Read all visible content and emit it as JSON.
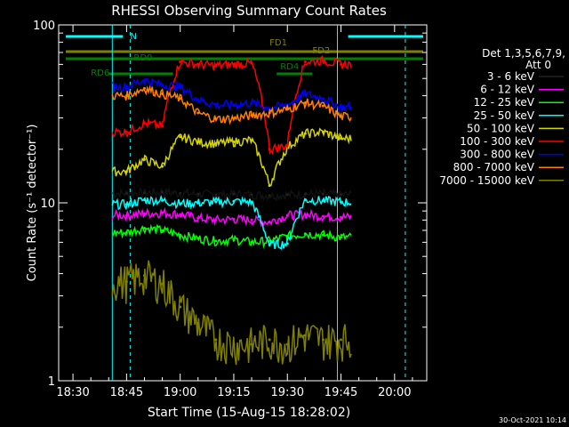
{
  "chart_data": {
    "type": "line",
    "title": "RHESSI Observing Summary Count Rates",
    "xlabel": "Start Time (15-Aug-15 18:28:02)",
    "ylabel": "Count Rate (s⁻¹ detector⁻¹)",
    "yscale": "log",
    "xlim": [
      "18:26",
      "20:09"
    ],
    "ylim": [
      1,
      100
    ],
    "x_ticks": [
      "18:30",
      "18:45",
      "19:00",
      "19:15",
      "19:30",
      "19:45",
      "20:00"
    ],
    "y_ticks": [
      "1",
      "10",
      "100"
    ],
    "grid": false,
    "legend_position": "right",
    "legend_header": [
      "Det 1,3,5,6,7,9,",
      "Att 0"
    ],
    "timestamp": "30-Oct-2021 10:14",
    "series": [
      {
        "name": "3 - 6 keV",
        "color": "#000000",
        "x": [
          "18:45",
          "18:50",
          "18:55",
          "19:00",
          "19:05",
          "19:10",
          "19:15",
          "19:20",
          "19:25",
          "19:30",
          "19:35",
          "19:40",
          "19:45"
        ],
        "y": [
          11.3,
          11.4,
          11.5,
          11.3,
          11.2,
          11.1,
          11.2,
          11.1,
          11.0,
          11.1,
          11.2,
          11.2,
          11.1
        ]
      },
      {
        "name": "6 - 12 keV",
        "color": "#ff00ff",
        "x": [
          "18:45",
          "18:50",
          "18:55",
          "19:00",
          "19:05",
          "19:10",
          "19:15",
          "19:20",
          "19:25",
          "19:30",
          "19:35",
          "19:40",
          "19:45"
        ],
        "y": [
          8.5,
          8.7,
          8.8,
          8.6,
          8.2,
          8.0,
          8.1,
          8.0,
          7.8,
          8.5,
          8.6,
          8.4,
          8.3
        ]
      },
      {
        "name": "12 - 25 keV",
        "color": "#00ff00",
        "x": [
          "18:45",
          "18:50",
          "18:55",
          "19:00",
          "19:05",
          "19:10",
          "19:15",
          "19:20",
          "19:25",
          "19:30",
          "19:35",
          "19:40",
          "19:45"
        ],
        "y": [
          6.8,
          7.2,
          7.0,
          6.6,
          6.3,
          6.1,
          6.2,
          6.0,
          6.1,
          6.5,
          6.7,
          6.6,
          6.4
        ]
      },
      {
        "name": "25 - 50 keV",
        "color": "#00ffff",
        "x": [
          "18:45",
          "18:50",
          "18:55",
          "19:00",
          "19:05",
          "19:10",
          "19:15",
          "19:20",
          "19:25",
          "19:30",
          "19:35",
          "19:40",
          "19:45"
        ],
        "y": [
          9.8,
          10.4,
          10.3,
          9.9,
          10.0,
          10.1,
          10.2,
          10.1,
          5.8,
          5.9,
          10.4,
          10.3,
          10.1
        ]
      },
      {
        "name": "50 - 100 keV",
        "color": "#d4d400",
        "x": [
          "18:45",
          "18:50",
          "18:55",
          "19:00",
          "19:05",
          "19:10",
          "19:15",
          "19:20",
          "19:25",
          "19:30",
          "19:35",
          "19:40",
          "19:45"
        ],
        "y": [
          15.0,
          17.5,
          16.0,
          23.5,
          22.0,
          21.5,
          22.0,
          22.5,
          12.5,
          20.5,
          24.5,
          25.0,
          23.0
        ]
      },
      {
        "name": "100 - 300 keV",
        "color": "#ff0000",
        "x": [
          "18:45",
          "18:50",
          "18:55",
          "19:00",
          "19:05",
          "19:10",
          "19:15",
          "19:20",
          "19:25",
          "19:30",
          "19:35",
          "19:40",
          "19:45"
        ],
        "y": [
          25.0,
          28.0,
          27.0,
          62.0,
          60.0,
          59.0,
          60.0,
          61.0,
          20.0,
          21.0,
          62.0,
          63.0,
          60.0
        ]
      },
      {
        "name": "300 - 800 keV",
        "color": "#0000ff",
        "x": [
          "18:45",
          "18:50",
          "18:55",
          "19:00",
          "19:05",
          "19:10",
          "19:15",
          "19:20",
          "19:25",
          "19:30",
          "19:35",
          "19:40",
          "19:45"
        ],
        "y": [
          45.0,
          49.0,
          46.0,
          45.0,
          38.0,
          35.5,
          35.5,
          36.5,
          34.0,
          35.5,
          41.0,
          38.5,
          34.5
        ]
      },
      {
        "name": "800 - 7000 keV",
        "color": "#ff8000",
        "x": [
          "18:45",
          "18:50",
          "18:55",
          "19:00",
          "19:05",
          "19:10",
          "19:15",
          "19:20",
          "19:25",
          "19:30",
          "19:35",
          "19:40",
          "19:45"
        ],
        "y": [
          40.0,
          44.0,
          41.0,
          38.5,
          32.0,
          29.5,
          29.8,
          31.0,
          32.0,
          33.5,
          36.5,
          35.0,
          30.5
        ]
      },
      {
        "name": "7000 - 15000 keV",
        "color": "#808000",
        "x": [
          "18:45",
          "18:50",
          "18:55",
          "19:00",
          "19:05",
          "19:10",
          "19:15",
          "19:20",
          "19:25",
          "19:30",
          "19:35",
          "19:40",
          "19:45"
        ],
        "y": [
          3.6,
          3.9,
          3.5,
          2.6,
          2.1,
          1.7,
          1.6,
          1.6,
          1.7,
          1.6,
          1.8,
          1.7,
          1.7
        ]
      }
    ],
    "state_bars": [
      {
        "label": "N",
        "color": "#00ffff"
      },
      {
        "label": "RD0",
        "color": "#008000"
      },
      {
        "label": "RD6",
        "color": "#008000"
      },
      {
        "label": "RD4",
        "color": "#008000"
      },
      {
        "label": "FD1",
        "color": "#808000"
      },
      {
        "label": "FD2",
        "color": "#808000"
      }
    ]
  }
}
